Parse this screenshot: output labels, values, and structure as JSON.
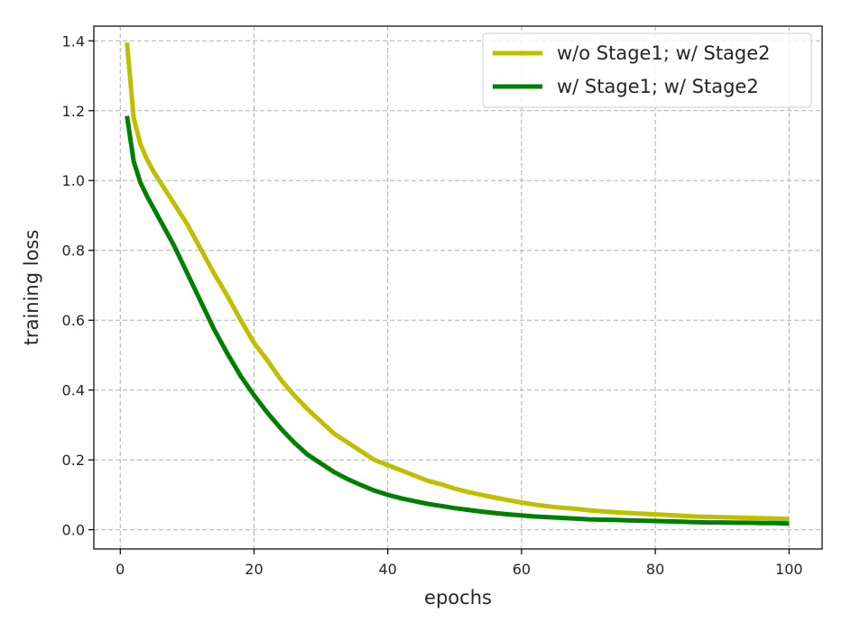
{
  "chart_data": {
    "type": "line",
    "title": "",
    "xlabel": "epochs",
    "ylabel": "training loss",
    "xlim": [
      -3.95,
      104.95
    ],
    "ylim": [
      -0.055,
      1.442
    ],
    "xticks": [
      0,
      20,
      40,
      60,
      80,
      100
    ],
    "yticks": [
      0.0,
      0.2,
      0.4,
      0.6,
      0.8,
      1.0,
      1.2,
      1.4
    ],
    "xtick_labels": [
      "0",
      "20",
      "40",
      "60",
      "80",
      "100"
    ],
    "ytick_labels": [
      "0.0",
      "0.2",
      "0.4",
      "0.6",
      "0.8",
      "1.0",
      "1.2",
      "1.4"
    ],
    "grid": true,
    "grid_style": "dashed",
    "legend_position": "upper-right",
    "series": [
      {
        "name": "w/o Stage1; w/ Stage2",
        "color": "#bfbf00",
        "x": [
          1,
          2,
          3,
          4,
          5,
          6,
          8,
          10,
          12,
          14,
          16,
          18,
          20,
          22,
          24,
          26,
          28,
          30,
          32,
          34,
          36,
          38,
          40,
          42,
          44,
          46,
          48,
          50,
          52,
          54,
          56,
          58,
          60,
          62,
          64,
          66,
          68,
          70,
          72,
          74,
          76,
          78,
          80,
          82,
          84,
          86,
          88,
          90,
          92,
          94,
          96,
          98,
          100
        ],
        "y": [
          1.395,
          1.18,
          1.105,
          1.06,
          1.025,
          0.995,
          0.935,
          0.875,
          0.805,
          0.735,
          0.67,
          0.6,
          0.535,
          0.485,
          0.43,
          0.385,
          0.345,
          0.31,
          0.275,
          0.25,
          0.225,
          0.2,
          0.185,
          0.17,
          0.155,
          0.14,
          0.13,
          0.118,
          0.108,
          0.1,
          0.092,
          0.085,
          0.078,
          0.072,
          0.067,
          0.063,
          0.06,
          0.056,
          0.053,
          0.05,
          0.048,
          0.046,
          0.044,
          0.042,
          0.04,
          0.038,
          0.037,
          0.036,
          0.035,
          0.034,
          0.033,
          0.032,
          0.031
        ]
      },
      {
        "name": "w/ Stage1; w/ Stage2",
        "color": "#008000",
        "x": [
          1,
          2,
          3,
          4,
          5,
          6,
          8,
          10,
          12,
          14,
          16,
          18,
          20,
          22,
          24,
          26,
          28,
          30,
          32,
          34,
          36,
          38,
          40,
          42,
          44,
          46,
          48,
          50,
          52,
          54,
          56,
          58,
          60,
          62,
          64,
          66,
          68,
          70,
          72,
          74,
          76,
          78,
          80,
          82,
          84,
          86,
          88,
          90,
          92,
          94,
          96,
          98,
          100
        ],
        "y": [
          1.185,
          1.055,
          0.995,
          0.955,
          0.92,
          0.885,
          0.815,
          0.735,
          0.655,
          0.575,
          0.505,
          0.44,
          0.385,
          0.335,
          0.29,
          0.25,
          0.215,
          0.19,
          0.165,
          0.145,
          0.128,
          0.112,
          0.1,
          0.09,
          0.082,
          0.074,
          0.068,
          0.062,
          0.057,
          0.052,
          0.048,
          0.044,
          0.041,
          0.038,
          0.036,
          0.034,
          0.032,
          0.03,
          0.029,
          0.028,
          0.027,
          0.026,
          0.025,
          0.024,
          0.023,
          0.022,
          0.021,
          0.021,
          0.02,
          0.02,
          0.019,
          0.019,
          0.018
        ]
      }
    ]
  }
}
